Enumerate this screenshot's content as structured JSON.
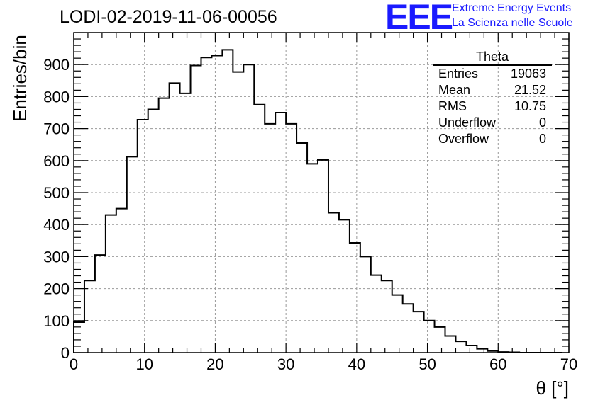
{
  "header": {
    "title": "LODI-02-2019-11-06-00056"
  },
  "logo": {
    "mark": "EEE",
    "line1": "Extreme Energy Events",
    "line2": "La Scienza nelle Scuole"
  },
  "stats_box": {
    "name": "Theta",
    "rows": [
      {
        "label": "Entries",
        "value": "19063"
      },
      {
        "label": "Mean",
        "value": "21.52"
      },
      {
        "label": "RMS",
        "value": "10.75"
      },
      {
        "label": "Underflow",
        "value": "0"
      },
      {
        "label": "Overflow",
        "value": "0"
      }
    ]
  },
  "chart_data": {
    "type": "bar",
    "title": "LODI-02-2019-11-06-00056",
    "xlabel": "θ [°]",
    "ylabel": "Entries/bin",
    "xlim": [
      0,
      70
    ],
    "ylim": [
      0,
      1000
    ],
    "grid": true,
    "bin_width": 1.5,
    "bin_start": 0,
    "xticks": [
      0,
      10,
      20,
      30,
      40,
      50,
      60,
      70
    ],
    "yticks": [
      0,
      100,
      200,
      300,
      400,
      500,
      600,
      700,
      800,
      900
    ],
    "values": [
      95,
      225,
      305,
      430,
      450,
      612,
      728,
      760,
      795,
      842,
      810,
      897,
      922,
      928,
      946,
      877,
      900,
      775,
      715,
      750,
      715,
      655,
      590,
      602,
      437,
      415,
      343,
      300,
      242,
      225,
      180,
      152,
      128,
      100,
      80,
      52,
      35,
      22,
      12,
      5,
      2,
      1,
      0,
      0,
      0,
      0
    ]
  }
}
